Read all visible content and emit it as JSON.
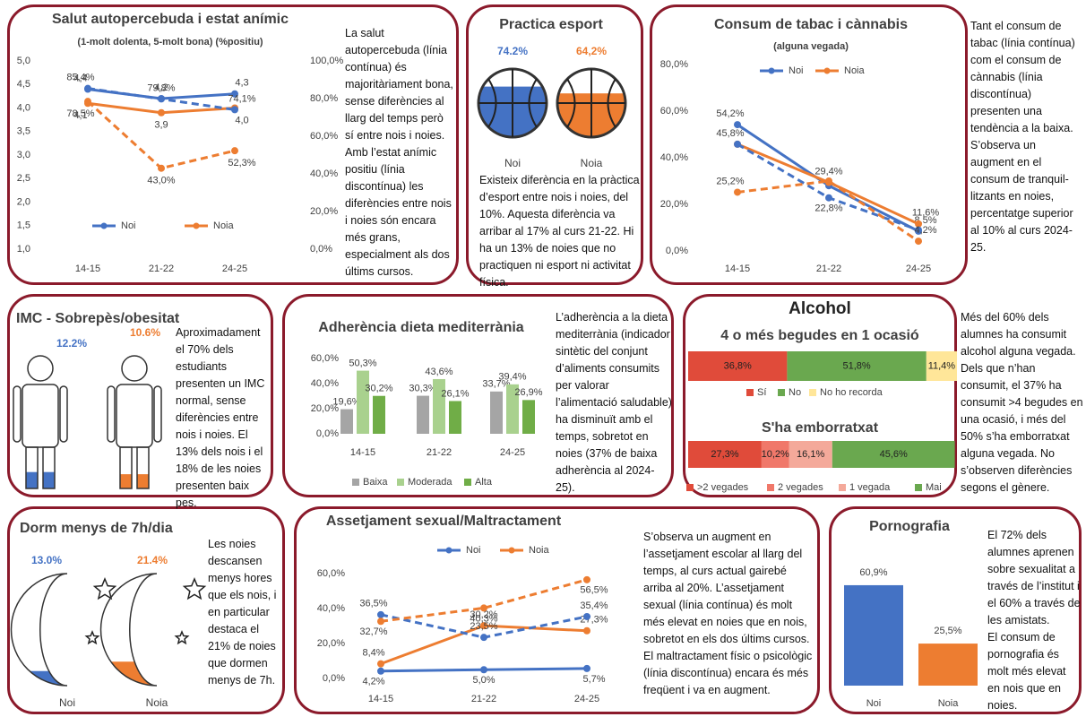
{
  "chart_data": [
    {
      "type": "line",
      "title": "Salut autopercebuda i estat anímic",
      "subtitle": "(1-molt dolenta, 5-molt bona) (%positiu)",
      "categories": [
        "14-15",
        "21-22",
        "24-25"
      ],
      "ylim": [
        1,
        5
      ],
      "yticks": [
        {
          "value": 1,
          "label": "1,0"
        },
        {
          "value": 1.5,
          "label": "1,5"
        },
        {
          "value": 2,
          "label": "2,0"
        },
        {
          "value": 2.5,
          "label": "2,5"
        },
        {
          "value": 3,
          "label": "3,0"
        },
        {
          "value": 3.5,
          "label": "3,5"
        },
        {
          "value": 4,
          "label": "4,0"
        },
        {
          "value": 4.5,
          "label": "4,5"
        },
        {
          "value": 5,
          "label": "5,0"
        }
      ],
      "y2lim": [
        0,
        100
      ],
      "y2ticks": [
        {
          "value": 0,
          "label": "0,0%"
        },
        {
          "value": 20,
          "label": "20,0%"
        },
        {
          "value": 40,
          "label": "40,0%"
        },
        {
          "value": 60,
          "label": "60,0%"
        },
        {
          "value": 80,
          "label": "80,0%"
        },
        {
          "value": 100,
          "label": "100,0%"
        }
      ],
      "legend": "bottom",
      "series": [
        {
          "name": "Noi",
          "color": "#4472c4",
          "values": [
            4.4,
            4.2,
            4.3
          ],
          "value_labels": [
            "4,4",
            "4,2",
            "4,3"
          ]
        },
        {
          "name": "Noia",
          "color": "#ed7d31",
          "values": [
            4.1,
            3.9,
            4.0
          ],
          "value_labels": [
            "4,1",
            "3,9",
            "4,0"
          ]
        },
        {
          "name": "Noi",
          "color": "#4472c4",
          "dash": true,
          "axis": "y2",
          "values": [
            85.4,
            79.8,
            74.1
          ],
          "value_labels": [
            "85,4%",
            "79,8%",
            "74,1%"
          ]
        },
        {
          "name": "Noia",
          "color": "#ed7d31",
          "dash": true,
          "axis": "y2",
          "values": [
            78.5,
            43.0,
            52.3
          ],
          "value_labels": [
            "78,5%",
            "43,0%",
            "52,3%"
          ]
        }
      ]
    },
    {
      "type": "pictogram",
      "icon": "ball",
      "title": "Practica esport",
      "categories": [
        "Noi",
        "Noia"
      ],
      "values": [
        74.2,
        64.2
      ],
      "value_labels": [
        "74.2%",
        "64,2%"
      ],
      "colors": [
        "#4472c4",
        "#ed7d31"
      ]
    },
    {
      "type": "line",
      "title": "Consum de tabac i cànnabis",
      "subtitle": "(alguna vegada)",
      "categories": [
        "14-15",
        "21-22",
        "24-25"
      ],
      "ylim": [
        0,
        80
      ],
      "yticks": [
        {
          "value": 0,
          "label": "0,0%"
        },
        {
          "value": 20,
          "label": "20,0%"
        },
        {
          "value": 40,
          "label": "40,0%"
        },
        {
          "value": 60,
          "label": "60,0%"
        },
        {
          "value": 80,
          "label": "80,0%"
        }
      ],
      "legend": "top",
      "series": [
        {
          "name": "Noi",
          "color": "#4472c4",
          "values": [
            54.2,
            28,
            8.5
          ],
          "value_labels": [
            "54,2%",
            null,
            "8,5%"
          ]
        },
        {
          "name": "Noia",
          "color": "#ed7d31",
          "values": [
            45.8,
            29.4,
            11.6
          ],
          "value_labels": [
            "45,8%",
            "29,4%",
            "11,6%"
          ]
        },
        {
          "name": "Noi",
          "color": "#4472c4",
          "dash": true,
          "values": [
            45.8,
            22.8,
            9
          ],
          "value_labels": [
            null,
            "22,8%",
            null
          ]
        },
        {
          "name": "Noia",
          "color": "#ed7d31",
          "dash": true,
          "values": [
            25.2,
            30,
            4.2
          ],
          "value_labels": [
            "25,2%",
            null,
            "4,2%"
          ]
        }
      ]
    },
    {
      "type": "pictogram",
      "icon": "person",
      "title": "IMC - Sobrepès/obesitat",
      "categories": [
        null,
        null
      ],
      "values": [
        12.2,
        10.6
      ],
      "value_labels": [
        "12.2%",
        "10.6%"
      ],
      "colors": [
        "#4472c4",
        "#ed7d31"
      ]
    },
    {
      "type": "grouped-bar",
      "title": "Adherència dieta mediterrània",
      "categories": [
        "14-15",
        "21-22",
        "24-25"
      ],
      "ylim": [
        0,
        60
      ],
      "yticks": [
        {
          "value": 0,
          "label": "0,0%"
        },
        {
          "value": 20,
          "label": "20,0%"
        },
        {
          "value": 40,
          "label": "40,0%"
        },
        {
          "value": 60,
          "label": "60,0%"
        }
      ],
      "legend": "bottom",
      "series": [
        {
          "name": "Baixa",
          "color": "#a5a5a5",
          "values": [
            19.6,
            30.3,
            33.7
          ],
          "value_labels": [
            "19,6%",
            "30,3%",
            "33,7%"
          ]
        },
        {
          "name": "Moderada",
          "color": "#a9d18e",
          "values": [
            50.3,
            43.6,
            39.4
          ],
          "value_labels": [
            "50,3%",
            "43,6%",
            "39,4%"
          ]
        },
        {
          "name": "Alta",
          "color": "#70ad47",
          "values": [
            30.2,
            26.1,
            26.9
          ],
          "value_labels": [
            "30,2%",
            "26,1%",
            "26,9%"
          ]
        }
      ]
    },
    {
      "type": "stacked-hbar",
      "supertitle": "Alcohol",
      "title": "4 o més begudes en 1 ocasió",
      "series": [
        {
          "name": "Sí",
          "color": "#e04b3a",
          "value": 36.8,
          "value_label": "36,8%"
        },
        {
          "name": "No",
          "color": "#6aa84f",
          "value": 51.8,
          "value_label": "51,8%"
        },
        {
          "name": "No ho recorda",
          "color": "#ffe699",
          "value": 11.4,
          "value_label": "11,4%"
        }
      ]
    },
    {
      "type": "stacked-hbar",
      "title": "S'ha emborratxat",
      "series": [
        {
          "name": ">2 vegades",
          "color": "#e04b3a",
          "value": 27.3,
          "value_label": "27,3%"
        },
        {
          "name": "2 vegades",
          "color": "#f0786a",
          "value": 10.2,
          "value_label": "10,2%"
        },
        {
          "name": "1 vegada",
          "color": "#f4a99a",
          "value": 16.1,
          "value_label": "16,1%"
        },
        {
          "name": "Mai",
          "color": "#6aa84f",
          "value": 45.6,
          "value_label": "45,6%"
        }
      ]
    },
    {
      "type": "pictogram",
      "icon": "moon",
      "title": "Dorm menys de 7h/dia",
      "categories": [
        "Noi",
        "Noia"
      ],
      "values": [
        13.0,
        21.4
      ],
      "value_labels": [
        "13.0%",
        "21.4%"
      ],
      "colors": [
        "#4472c4",
        "#ed7d31"
      ]
    },
    {
      "type": "line",
      "title": "Assetjament sexual/Maltractament",
      "categories": [
        "14-15",
        "21-22",
        "24-25"
      ],
      "ylim": [
        0,
        60
      ],
      "yticks": [
        {
          "value": 0,
          "label": "0,0%"
        },
        {
          "value": 20,
          "label": "20,0%"
        },
        {
          "value": 40,
          "label": "40,0%"
        },
        {
          "value": 60,
          "label": "60,0%"
        }
      ],
      "legend": "top",
      "series": [
        {
          "name": "Noi",
          "color": "#4472c4",
          "values": [
            4.2,
            5.0,
            5.7
          ],
          "value_labels": [
            "4,2%",
            "5,0%",
            "5,7%"
          ]
        },
        {
          "name": "Noia",
          "color": "#ed7d31",
          "values": [
            8.4,
            30.2,
            27.3
          ],
          "value_labels": [
            "8,4%",
            "30,2%",
            "27,3%"
          ]
        },
        {
          "name": "Noi",
          "color": "#4472c4",
          "dash": true,
          "values": [
            36.5,
            23.5,
            35.4
          ],
          "value_labels": [
            "36,5%",
            "23,5%",
            "35,4%"
          ]
        },
        {
          "name": "Noia",
          "color": "#ed7d31",
          "dash": true,
          "values": [
            32.7,
            40.3,
            56.5
          ],
          "value_labels": [
            "32,7%",
            "40,3%",
            "56,5%"
          ]
        }
      ]
    },
    {
      "type": "bar",
      "title": "Pornografia",
      "categories": [
        "Noi",
        "Noia"
      ],
      "values": [
        60.9,
        25.5
      ],
      "value_labels": [
        "60,9%",
        "25,5%"
      ],
      "colors": [
        "#4472c4",
        "#ed7d31"
      ]
    }
  ],
  "notes": {
    "salut": "La salut autopercebuda (línia contínua) és majoritàriament bona, sense diferències al llarg del temps però sí entre nois i noies. Amb l’estat anímic positiu (línia discontínua) les diferències entre nois i noies són encara més grans, especialment als dos últims cursos.",
    "esport": "Existeix diferència en la pràctica d’esport entre nois i noies, del 10%. Aquesta diferència va arribar al 17% al curs 21-22. Hi ha un 13% de noies que no practiquen ni esport ni activitat física.",
    "tabac": "Tant el consum de tabac (línia contínua) com el consum de cànnabis (línia discontínua) presenten una tendència a la baixa. S’observa un augment en el consum de tranquil-litzants en noies, percentatge superior al 10% al curs 2024-25.",
    "imc": "Aproximadament el 70% dels estudiants presenten un IMC normal, sense diferències entre nois i noies. El 13% dels nois i el 18% de les noies presenten baix pes.",
    "dieta": "L’adherència a la dieta mediterrània (indicador sintètic del conjunt d’aliments consumits per valorar l’alimentació saludable) ha disminuït amb el temps, sobretot en noies (37% de baixa adherència al 2024-25).",
    "alcohol": "Més del 60% dels alumnes ha consumit alcohol alguna vegada. Dels que n’han consumit, el 37% ha consumit >4 begudes en una ocasió, i més del 50% s’ha emborratxat alguna vegada. No s’observen diferències segons el gènere.",
    "dorm": "Les noies descansen menys hores que els nois, i en particular destaca el 21% de noies que dormen menys de 7h.",
    "assetjament": "S’observa un augment en l’assetjament escolar al llarg del temps, al curs actual gairebé arriba al 20%. L’assetjament sexual (línia contínua) és molt més elevat en noies que en nois, sobretot en els dos últims cursos. El maltractament físic o psicològic (línia discontínua) encara és més freqüent i va en augment.",
    "pornografia": [
      "El 72% dels alumnes aprenen sobre sexualitat a través de l’institut i el 60% a través de les amistats.",
      "El consum de pornografia és molt més elevat en nois que en noies."
    ]
  }
}
